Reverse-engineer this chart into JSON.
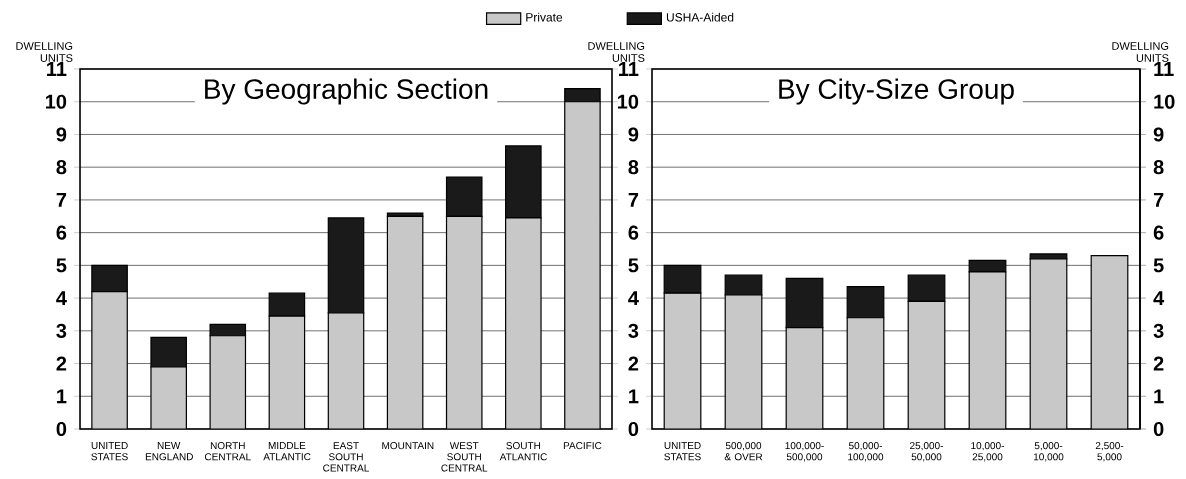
{
  "chart_data": [
    {
      "type": "bar",
      "stacked": true,
      "title": "By Geographic Section",
      "ylabel": "DWELLING UNITS",
      "categories": [
        "UNITED STATES",
        "NEW ENGLAND",
        "NORTH CENTRAL",
        "MIDDLE ATLANTIC",
        "EAST SOUTH CENTRAL",
        "MOUNTAIN",
        "WEST SOUTH CENTRAL",
        "SOUTH ATLANTIC",
        "PACIFIC"
      ],
      "series": [
        {
          "name": "Private",
          "color": "#c8c8c8",
          "values": [
            4.2,
            1.9,
            2.85,
            3.45,
            3.55,
            6.5,
            6.5,
            6.45,
            10.0
          ]
        },
        {
          "name": "USHA-Aided",
          "color": "#1a1a1a",
          "values": [
            0.8,
            0.9,
            0.35,
            0.7,
            2.9,
            0.1,
            1.2,
            2.2,
            0.4
          ]
        }
      ],
      "ylim": [
        0,
        11
      ],
      "yticks": [
        0,
        1,
        2,
        3,
        4,
        5,
        6,
        7,
        8,
        9,
        10,
        11
      ],
      "grid": "y",
      "legend": "top"
    },
    {
      "type": "bar",
      "stacked": true,
      "title": "By City-Size Group",
      "ylabel": "DWELLING UNITS",
      "y2label": "DWELLING UNITS",
      "categories": [
        "UNITED STATES",
        "500,000 & OVER",
        "100,000-500,000",
        "50,000-100,000",
        "25,000-50,000",
        "10,000-25,000",
        "5,000-10,000",
        "2,500-5,000"
      ],
      "series": [
        {
          "color": "#c8c8c8",
          "values": [
            4.15,
            4.1,
            3.1,
            3.4,
            3.9,
            4.8,
            5.2,
            5.3
          ]
        },
        {
          "color": "#1a1a1a",
          "values": [
            0.85,
            0.6,
            1.5,
            0.95,
            0.8,
            0.35,
            0.15,
            0
          ]
        }
      ],
      "ylim": [
        0,
        11
      ],
      "yticks": [
        0,
        1,
        2,
        3,
        4,
        5,
        6,
        7,
        8,
        9,
        10,
        11
      ],
      "y2lim": [
        0,
        11
      ],
      "y2ticks": [
        0,
        1,
        2,
        3,
        4,
        5,
        6,
        7,
        8,
        9,
        10,
        11
      ],
      "grid": "y"
    }
  ]
}
